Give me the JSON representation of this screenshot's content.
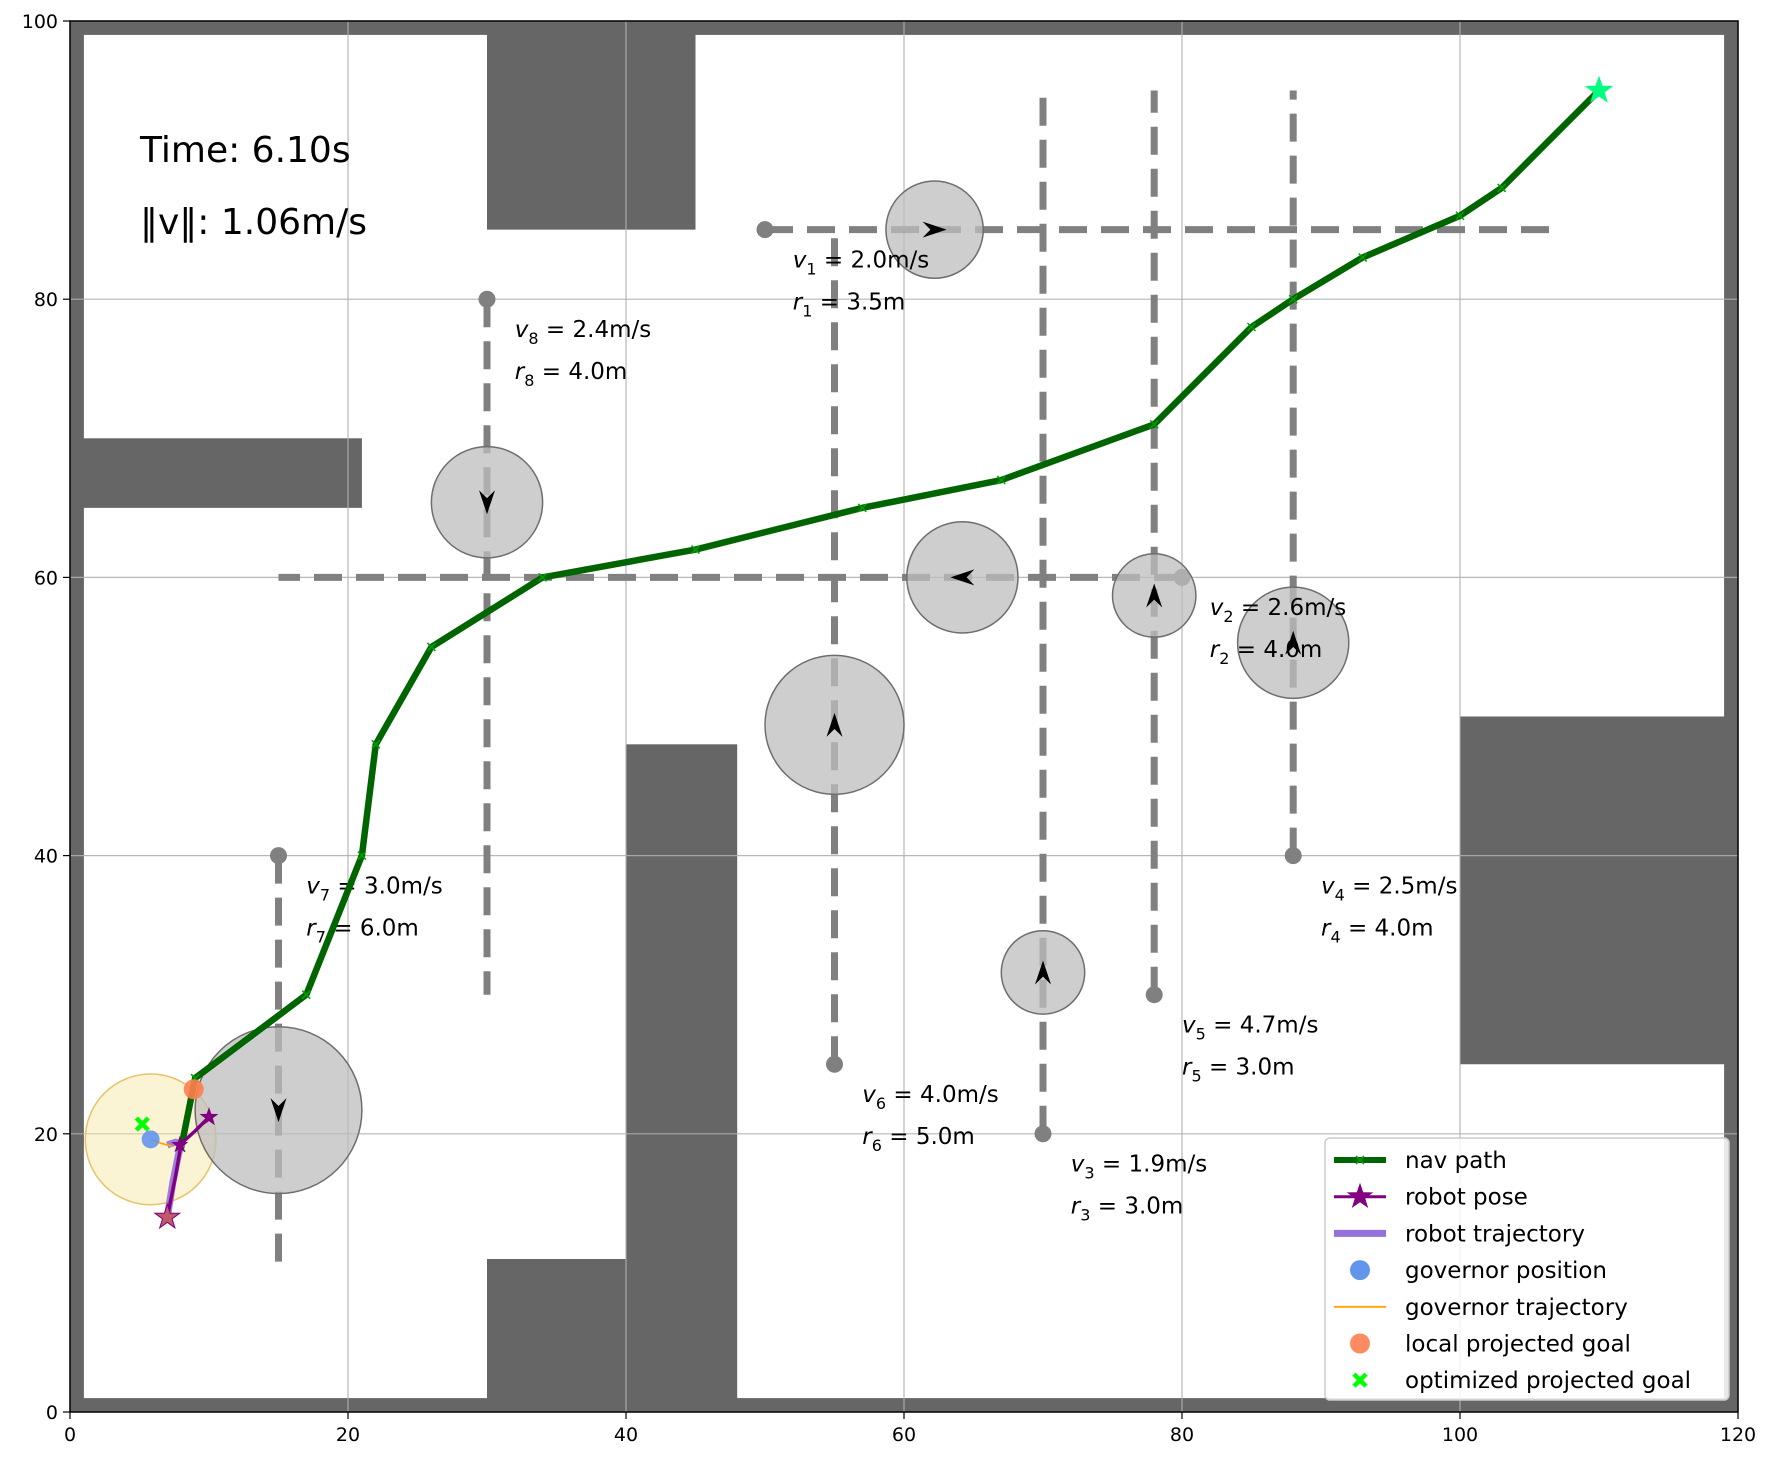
{
  "chart_data": {
    "type": "scatter",
    "xlim": [
      0,
      120
    ],
    "ylim": [
      0,
      100
    ],
    "xticks": [
      0,
      20,
      40,
      60,
      80,
      100,
      120
    ],
    "yticks": [
      0,
      20,
      40,
      60,
      80,
      100
    ],
    "grid": true,
    "legend_position": "bottom-right",
    "colors": {
      "obstacle": "#666666",
      "nav_path": "#006400",
      "robot_pose": "#800080",
      "robot_trajectory": "#9370DB",
      "governor_position": "#6495ED",
      "governor_trajectory": "#FFA500",
      "local_projected_goal": "#FF7F50",
      "optimized_projected_goal": "#00FF00",
      "goal_star": "#00FF7F",
      "pedestrian": "#C8C8C8",
      "lane": "#808080"
    },
    "time_text": "Time: 6.10s",
    "speed_text": "‖v‖: 1.06m/s",
    "obstacles": [
      {
        "x0": 0,
        "x1": 120,
        "y0": 0,
        "y1": 1
      },
      {
        "x0": 0,
        "x1": 120,
        "y0": 99,
        "y1": 100
      },
      {
        "x0": 0,
        "x1": 1,
        "y0": 0,
        "y1": 100
      },
      {
        "x0": 119,
        "x1": 120,
        "y0": 0,
        "y1": 100
      },
      {
        "x0": 30,
        "x1": 45,
        "y0": 85,
        "y1": 100
      },
      {
        "x0": 0,
        "x1": 21,
        "y0": 65,
        "y1": 70
      },
      {
        "x0": 40,
        "x1": 48,
        "y0": 0,
        "y1": 48
      },
      {
        "x0": 30,
        "x1": 40,
        "y0": 0,
        "y1": 11
      },
      {
        "x0": 100,
        "x1": 120,
        "y0": 25,
        "y1": 50
      }
    ],
    "lanes": [
      {
        "id": 1,
        "x0": 50,
        "y0": 85,
        "x1": 107,
        "y1": 85,
        "ped_x": 62.2,
        "ped_y": 85,
        "dir": "right",
        "radius": 3.5,
        "v_label": "v_1 = 2.0m/s",
        "r_label": "r_1 = 3.5m",
        "label_x": 52,
        "label_y": 82
      },
      {
        "id": 2,
        "x0": 80,
        "y0": 60,
        "x1": 15,
        "y1": 60,
        "ped_x": 64.2,
        "ped_y": 60,
        "dir": "left",
        "radius": 4.0,
        "v_label": "v_2 = 2.6m/s",
        "r_label": "r_2 = 4.0m",
        "label_x": 82,
        "label_y": 57
      },
      {
        "id": 3,
        "x0": 70,
        "y0": 20,
        "x1": 70,
        "y1": 95,
        "ped_x": 70,
        "ped_y": 31.6,
        "dir": "up",
        "radius": 3.0,
        "v_label": "v_3 = 1.9m/s",
        "r_label": "r_3 = 3.0m",
        "label_x": 72,
        "label_y": 17
      },
      {
        "id": 4,
        "x0": 88,
        "y0": 40,
        "x1": 88,
        "y1": 95,
        "ped_x": 88,
        "ped_y": 55.3,
        "dir": "up",
        "radius": 4.0,
        "v_label": "v_4 = 2.5m/s",
        "r_label": "r_4 = 4.0m",
        "label_x": 90,
        "label_y": 37
      },
      {
        "id": 5,
        "x0": 78,
        "y0": 30,
        "x1": 78,
        "y1": 95,
        "ped_x": 78,
        "ped_y": 58.7,
        "dir": "up",
        "radius": 3.0,
        "v_label": "v_5 = 4.7m/s",
        "r_label": "r_5 = 3.0m",
        "label_x": 80,
        "label_y": 27
      },
      {
        "id": 6,
        "x0": 55,
        "y0": 25,
        "x1": 55,
        "y1": 85,
        "ped_x": 55,
        "ped_y": 49.4,
        "dir": "up",
        "radius": 5.0,
        "v_label": "v_6 = 4.0m/s",
        "r_label": "r_6 = 5.0m",
        "label_x": 57,
        "label_y": 22
      },
      {
        "id": 7,
        "x0": 15,
        "y0": 40,
        "x1": 15,
        "y1": 10,
        "ped_x": 15,
        "ped_y": 21.7,
        "dir": "down",
        "radius": 6.0,
        "v_label": "v_7 = 3.0m/s",
        "r_label": "r_7 = 6.0m",
        "label_x": 17,
        "label_y": 37
      },
      {
        "id": 8,
        "x0": 30,
        "y0": 80,
        "x1": 30,
        "y1": 30,
        "ped_x": 30,
        "ped_y": 65.4,
        "dir": "down",
        "radius": 4.0,
        "v_label": "v_8 = 2.4m/s",
        "r_label": "r_8 = 4.0m",
        "label_x": 32,
        "label_y": 77
      }
    ],
    "nav_path": {
      "x": [
        8,
        9,
        17,
        21,
        22,
        26,
        34,
        45,
        57,
        67,
        78,
        85,
        88,
        93,
        100,
        103,
        110
      ],
      "y": [
        19,
        24,
        30,
        40,
        48,
        55,
        60,
        62,
        65,
        67,
        71,
        78,
        80,
        83,
        86,
        88,
        95
      ]
    },
    "robot_trajectory": {
      "x": [
        7,
        7.4,
        7.8,
        8,
        7.6,
        7
      ],
      "y": [
        14,
        16.5,
        18.5,
        19.2,
        19.4,
        19.2
      ]
    },
    "robot_pose_trail": {
      "x": [
        7,
        7.6,
        8,
        9,
        10
      ],
      "y": [
        14,
        17,
        19.3,
        20.2,
        21.2
      ]
    },
    "robot_start": {
      "x": 7,
      "y": 14
    },
    "goal": {
      "x": 110,
      "y": 95
    },
    "governor": {
      "x": 5.8,
      "y": 19.6,
      "safe_radius": 4.7
    },
    "local_projected_goal": {
      "x": 8.9,
      "y": 23.2
    },
    "optimized_projected_goal": {
      "x": 5.2,
      "y": 20.7
    },
    "legend": [
      {
        "key": "nav_path",
        "label": "nav path"
      },
      {
        "key": "robot_pose",
        "label": "robot pose"
      },
      {
        "key": "robot_trajectory",
        "label": "robot trajectory"
      },
      {
        "key": "governor_position",
        "label": "governor position"
      },
      {
        "key": "governor_trajectory",
        "label": "governor trajectory"
      },
      {
        "key": "local_projected_goal",
        "label": "local projected goal"
      },
      {
        "key": "optimized_projected_goal",
        "label": "optimized projected goal"
      }
    ]
  }
}
